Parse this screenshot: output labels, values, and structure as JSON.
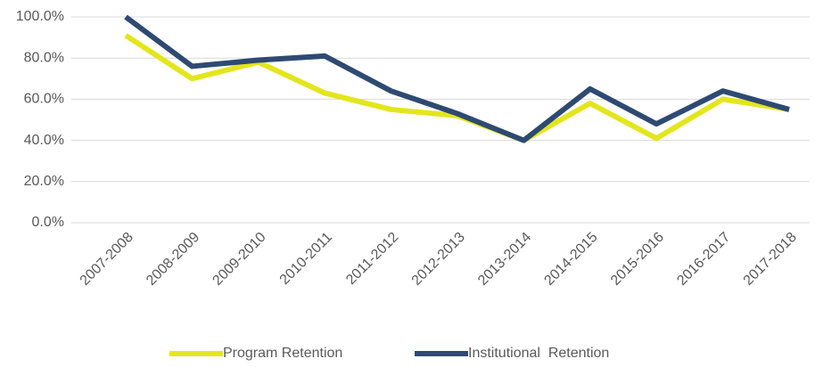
{
  "chart_data": {
    "type": "line",
    "categories": [
      "2007-2008",
      "2008-2009",
      "2009-2010",
      "2010-2011",
      "2011-2012",
      "2012-2013",
      "2013-2014",
      "2014-2015",
      "2015-2016",
      "2016-2017",
      "2017-2018"
    ],
    "series": [
      {
        "name": "Program Retention",
        "color": "#e3e61c",
        "values": [
          91,
          70,
          78,
          63,
          55,
          52,
          40,
          58,
          41,
          60,
          55
        ]
      },
      {
        "name": "Institutional  Retention",
        "color": "#2e4a72",
        "values": [
          100,
          76,
          79,
          81,
          64,
          53,
          40,
          65,
          48,
          64,
          55
        ]
      }
    ],
    "ylim": [
      0,
      100
    ],
    "yticks": [
      {
        "value": 0,
        "label": "0.0%"
      },
      {
        "value": 20,
        "label": "20.0%"
      },
      {
        "value": 40,
        "label": "40.0%"
      },
      {
        "value": 60,
        "label": "60.0%"
      },
      {
        "value": 80,
        "label": "80.0%"
      },
      {
        "value": 100,
        "label": "100.0%"
      }
    ],
    "grid": true,
    "legend": "bottom"
  }
}
